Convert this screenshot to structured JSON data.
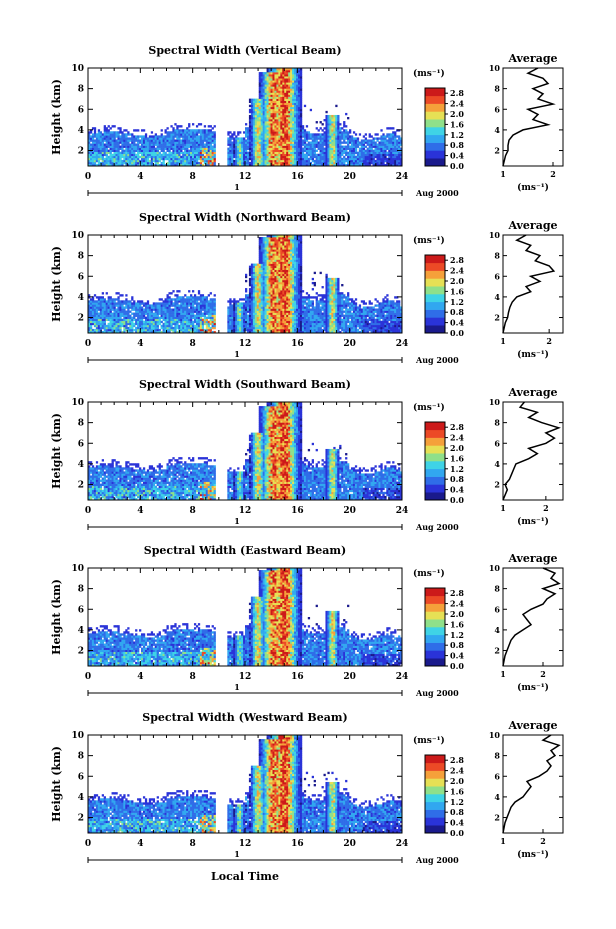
{
  "figure": {
    "x_axis_label": "Local Time",
    "date_label": "Aug 2000",
    "day_marker": "1",
    "y_axis_label": "Height (km)",
    "colorbar_unit": "(ms⁻¹)",
    "average_title": "Average",
    "average_xlabel": "(ms⁻¹)"
  },
  "colorscale": [
    "#1a1a8c",
    "#2a33d8",
    "#2f6de8",
    "#31a7f0",
    "#3fd3e6",
    "#8fe08a",
    "#e6e055",
    "#f5a03a",
    "#ec4a26",
    "#cc1a1a"
  ],
  "chart_data": [
    {
      "type": "heatmap",
      "title": "Spectral Width (Vertical Beam)",
      "xlabel": "",
      "ylabel": "Height (km)",
      "xlim": [
        0,
        24
      ],
      "ylim": [
        0.5,
        10
      ],
      "x_ticks": [
        0,
        4,
        8,
        12,
        16,
        20,
        24
      ],
      "y_ticks": [
        2,
        4,
        6,
        8,
        10
      ],
      "colorbar": {
        "label": "(ms⁻¹)",
        "ticks": [
          "0.0",
          "0.4",
          "0.8",
          "1.2",
          "1.6",
          "2.0",
          "2.4",
          "2.8"
        ],
        "range": [
          0,
          3.0
        ]
      },
      "average_profile": {
        "title": "Average",
        "xlabel": "(ms⁻¹)",
        "x_ticks": [
          "1",
          "2"
        ],
        "xlim": [
          1,
          2.2
        ],
        "y_ticks": [
          2,
          4,
          6,
          8,
          10
        ],
        "x": [
          1.0,
          1.05,
          1.1,
          1.1,
          1.12,
          1.2,
          1.4,
          1.9,
          1.6,
          1.7,
          1.5,
          2.0,
          1.7,
          1.8,
          1.6,
          1.9,
          1.8,
          1.5,
          1.7
        ],
        "y": [
          0.5,
          1.5,
          2.0,
          2.5,
          3.0,
          3.5,
          4.0,
          4.5,
          5.0,
          5.5,
          6.0,
          6.5,
          7.0,
          7.5,
          8.0,
          8.5,
          9.0,
          9.5,
          10.0
        ]
      }
    },
    {
      "type": "heatmap",
      "title": "Spectral Width (Northward Beam)",
      "xlabel": "",
      "ylabel": "Height (km)",
      "xlim": [
        0,
        24
      ],
      "ylim": [
        0.5,
        10
      ],
      "x_ticks": [
        0,
        4,
        8,
        12,
        16,
        20,
        24
      ],
      "y_ticks": [
        2,
        4,
        6,
        8,
        10
      ],
      "colorbar": {
        "label": "(ms⁻¹)",
        "ticks": [
          "0.0",
          "0.4",
          "0.8",
          "1.2",
          "1.6",
          "2.0",
          "2.4",
          "2.8"
        ],
        "range": [
          0,
          3.0
        ]
      },
      "average_profile": {
        "title": "Average",
        "xlabel": "(ms⁻¹)",
        "x_ticks": [
          "1",
          "2"
        ],
        "xlim": [
          1,
          2.3
        ],
        "y_ticks": [
          2,
          4,
          6,
          8,
          10
        ],
        "x": [
          1.0,
          1.05,
          1.1,
          1.12,
          1.15,
          1.2,
          1.3,
          1.6,
          1.5,
          1.8,
          1.6,
          2.1,
          2.0,
          1.7,
          1.8,
          1.5,
          1.6,
          1.3,
          1.5
        ],
        "y": [
          0.5,
          1.5,
          2.0,
          2.5,
          3.0,
          3.5,
          4.0,
          4.5,
          5.0,
          5.5,
          6.0,
          6.5,
          7.0,
          7.5,
          8.0,
          8.5,
          9.0,
          9.5,
          10.0
        ]
      }
    },
    {
      "type": "heatmap",
      "title": "Spectral Width (Southward Beam)",
      "xlabel": "",
      "ylabel": "Height (km)",
      "xlim": [
        0,
        24
      ],
      "ylim": [
        0.5,
        10
      ],
      "x_ticks": [
        0,
        4,
        8,
        12,
        16,
        20,
        24
      ],
      "y_ticks": [
        2,
        4,
        6,
        8,
        10
      ],
      "colorbar": {
        "label": "(ms⁻¹)",
        "ticks": [
          "0.0",
          "0.4",
          "0.8",
          "1.2",
          "1.6",
          "2.0",
          "2.4",
          "2.8"
        ],
        "range": [
          0,
          3.0
        ]
      },
      "average_profile": {
        "title": "Average",
        "xlabel": "(ms⁻¹)",
        "x_ticks": [
          "1",
          "2"
        ],
        "xlim": [
          1,
          2.4
        ],
        "y_ticks": [
          2,
          4,
          6,
          8,
          10
        ],
        "x": [
          1.0,
          1.1,
          1.05,
          1.15,
          1.2,
          1.25,
          1.3,
          1.6,
          1.8,
          1.6,
          2.0,
          2.2,
          2.0,
          2.3,
          1.9,
          1.6,
          1.8,
          1.4,
          1.5
        ],
        "y": [
          0.5,
          1.5,
          2.0,
          2.5,
          3.0,
          3.5,
          4.0,
          4.5,
          5.0,
          5.5,
          6.0,
          6.5,
          7.0,
          7.5,
          8.0,
          8.5,
          9.0,
          9.5,
          10.0
        ]
      }
    },
    {
      "type": "heatmap",
      "title": "Spectral Width (Eastward Beam)",
      "xlabel": "",
      "ylabel": "Height (km)",
      "xlim": [
        0,
        24
      ],
      "ylim": [
        0.5,
        10
      ],
      "x_ticks": [
        0,
        4,
        8,
        12,
        16,
        20,
        24
      ],
      "y_ticks": [
        2,
        4,
        6,
        8,
        10
      ],
      "colorbar": {
        "label": "(ms⁻¹)",
        "ticks": [
          "0.0",
          "0.4",
          "0.8",
          "1.2",
          "1.6",
          "2.0",
          "2.4",
          "2.8"
        ],
        "range": [
          0,
          3.0
        ]
      },
      "average_profile": {
        "title": "Average",
        "xlabel": "(ms⁻¹)",
        "x_ticks": [
          "1",
          "2"
        ],
        "xlim": [
          1,
          2.5
        ],
        "y_ticks": [
          2,
          4,
          6,
          8,
          10
        ],
        "x": [
          1.0,
          1.05,
          1.1,
          1.15,
          1.2,
          1.3,
          1.5,
          1.7,
          1.6,
          1.5,
          1.7,
          2.0,
          2.1,
          2.3,
          2.0,
          2.4,
          2.2,
          2.3,
          2.0
        ],
        "y": [
          0.5,
          1.5,
          2.0,
          2.5,
          3.0,
          3.5,
          4.0,
          4.5,
          5.0,
          5.5,
          6.0,
          6.5,
          7.0,
          7.5,
          8.0,
          8.5,
          9.0,
          9.5,
          10.0
        ]
      }
    },
    {
      "type": "heatmap",
      "title": "Spectral Width (Westward Beam)",
      "xlabel": "Local Time",
      "ylabel": "Height (km)",
      "xlim": [
        0,
        24
      ],
      "ylim": [
        0.5,
        10
      ],
      "x_ticks": [
        0,
        4,
        8,
        12,
        16,
        20,
        24
      ],
      "y_ticks": [
        2,
        4,
        6,
        8,
        10
      ],
      "colorbar": {
        "label": "(ms⁻¹)",
        "ticks": [
          "0.0",
          "0.4",
          "0.8",
          "1.2",
          "1.6",
          "2.0",
          "2.4",
          "2.8"
        ],
        "range": [
          0,
          3.0
        ]
      },
      "average_profile": {
        "title": "Average",
        "xlabel": "(ms⁻¹)",
        "x_ticks": [
          "1",
          "2"
        ],
        "xlim": [
          1,
          2.5
        ],
        "y_ticks": [
          2,
          4,
          6,
          8,
          10
        ],
        "x": [
          1.0,
          1.05,
          1.1,
          1.15,
          1.2,
          1.3,
          1.5,
          1.6,
          1.7,
          1.6,
          1.9,
          2.1,
          2.2,
          2.1,
          2.3,
          2.2,
          2.4,
          2.0,
          2.2
        ],
        "y": [
          0.5,
          1.5,
          2.0,
          2.5,
          3.0,
          3.5,
          4.0,
          4.5,
          5.0,
          5.5,
          6.0,
          6.5,
          7.0,
          7.5,
          8.0,
          8.5,
          9.0,
          9.5,
          10.0
        ]
      }
    }
  ]
}
